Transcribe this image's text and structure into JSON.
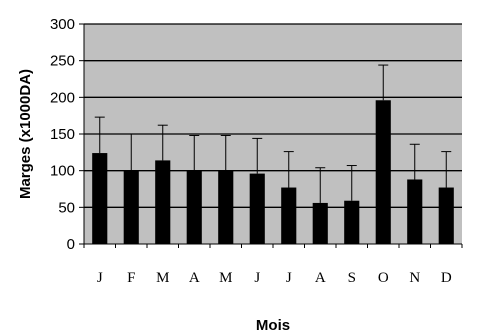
{
  "chart_data": {
    "type": "bar",
    "title": "",
    "xlabel": "Mois",
    "ylabel": "Marges  (x1000DA)",
    "categories": [
      "J",
      "F",
      "M",
      "A",
      "M",
      "J",
      "J",
      "A",
      "S",
      "O",
      "N",
      "D"
    ],
    "values": [
      124,
      100,
      114,
      100,
      100,
      96,
      77,
      56,
      59,
      196,
      88,
      77
    ],
    "error_upper": [
      173,
      150,
      162,
      148,
      148,
      144,
      126,
      104,
      107,
      244,
      136,
      126
    ],
    "ylim": [
      0,
      300
    ],
    "yticks": [
      0,
      50,
      100,
      150,
      200,
      250,
      300
    ],
    "grid": true,
    "colors": {
      "plot_background": "#c0c0c0",
      "bar": "#000000",
      "gridline": "#000000",
      "error_bar": "#000000"
    }
  }
}
